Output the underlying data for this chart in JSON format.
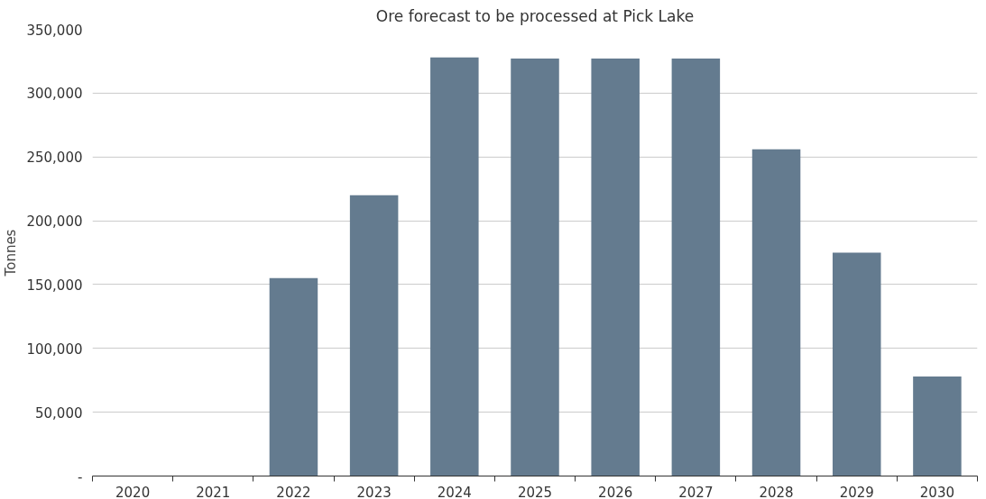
{
  "chart_data": {
    "type": "bar",
    "title": "Ore forecast to be processed at Pick Lake",
    "ylabel": "Tonnes",
    "categories": [
      "2020",
      "2021",
      "2022",
      "2023",
      "2024",
      "2025",
      "2026",
      "2027",
      "2028",
      "2029",
      "2030"
    ],
    "values": [
      0,
      0,
      155000,
      220000,
      328000,
      327000,
      327000,
      327000,
      256000,
      175000,
      78000
    ],
    "color": "#647b8f",
    "ylim": [
      0,
      350000
    ],
    "yticks": [
      {
        "value": 0,
        "label": "-"
      },
      {
        "value": 50000,
        "label": "50,000"
      },
      {
        "value": 100000,
        "label": "100,000"
      },
      {
        "value": 150000,
        "label": "150,000"
      },
      {
        "value": 200000,
        "label": "200,000"
      },
      {
        "value": 250000,
        "label": "250,000"
      },
      {
        "value": 300000,
        "label": "300,000"
      },
      {
        "value": 350000,
        "label": "350,000"
      }
    ],
    "grid": "y"
  }
}
